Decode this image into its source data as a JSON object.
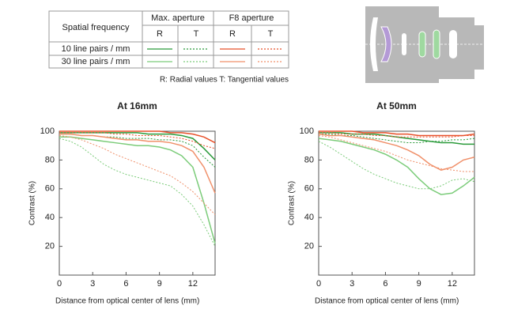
{
  "legend_table": {
    "corner": "Spatial frequency",
    "groups": [
      "Max. aperture",
      "F8 aperture"
    ],
    "columns": [
      "R",
      "T",
      "R",
      "T"
    ],
    "rows": [
      "10 line pairs / mm",
      "30 line pairs / mm"
    ],
    "note": "R: Radial values  T: Tangential values"
  },
  "chart_data": [
    {
      "type": "line",
      "title": "At 16mm",
      "xlabel": "Distance from optical center of lens (mm)",
      "ylabel": "Contrast (%)",
      "xlim": [
        0,
        14
      ],
      "ylim": [
        0,
        100
      ],
      "xticks": [
        0,
        3,
        6,
        9,
        12
      ],
      "yticks": [
        20,
        40,
        60,
        80,
        100
      ],
      "x": [
        0,
        1,
        2,
        3,
        4,
        5,
        6,
        7,
        8,
        9,
        10,
        11,
        12,
        13,
        14
      ],
      "series": [
        {
          "color": "#2a9a3a",
          "dashed": false,
          "values": [
            99,
            99,
            99,
            99,
            99,
            99,
            99,
            99,
            98,
            98,
            98,
            97,
            95,
            88,
            80
          ]
        },
        {
          "color": "#2a9a3a",
          "dashed": true,
          "values": [
            98,
            98,
            97,
            97,
            96,
            96,
            95,
            95,
            95,
            94,
            94,
            93,
            90,
            82,
            75
          ]
        },
        {
          "color": "#e8502a",
          "dashed": false,
          "values": [
            100,
            100,
            100,
            100,
            100,
            100,
            100,
            100,
            100,
            100,
            99,
            99,
            98,
            96,
            92
          ]
        },
        {
          "color": "#e8502a",
          "dashed": true,
          "values": [
            99,
            99,
            99,
            99,
            99,
            98,
            98,
            97,
            97,
            97,
            96,
            95,
            93,
            90,
            88
          ]
        },
        {
          "color": "#7ccc7a",
          "dashed": false,
          "values": [
            96,
            96,
            95,
            94,
            93,
            92,
            91,
            90,
            90,
            89,
            87,
            83,
            75,
            50,
            22
          ]
        },
        {
          "color": "#7ccc7a",
          "dashed": true,
          "values": [
            95,
            93,
            89,
            83,
            77,
            73,
            70,
            68,
            66,
            64,
            62,
            56,
            48,
            35,
            20
          ]
        },
        {
          "color": "#f0906a",
          "dashed": false,
          "values": [
            98,
            98,
            97,
            97,
            96,
            95,
            94,
            94,
            93,
            93,
            92,
            90,
            86,
            75,
            57
          ]
        },
        {
          "color": "#f0906a",
          "dashed": true,
          "values": [
            97,
            96,
            94,
            91,
            88,
            84,
            81,
            78,
            75,
            72,
            69,
            64,
            58,
            50,
            42
          ]
        }
      ]
    },
    {
      "type": "line",
      "title": "At 50mm",
      "xlabel": "Distance from optical center of lens (mm)",
      "ylabel": "Contrast (%)",
      "xlim": [
        0,
        14
      ],
      "ylim": [
        0,
        100
      ],
      "xticks": [
        0,
        3,
        6,
        9,
        12
      ],
      "yticks": [
        20,
        40,
        60,
        80,
        100
      ],
      "x": [
        0,
        1,
        2,
        3,
        4,
        5,
        6,
        7,
        8,
        9,
        10,
        11,
        12,
        13,
        14
      ],
      "series": [
        {
          "color": "#2a9a3a",
          "dashed": false,
          "values": [
            99,
            99,
            99,
            98,
            98,
            98,
            97,
            96,
            95,
            94,
            93,
            92,
            92,
            91,
            91
          ]
        },
        {
          "color": "#2a9a3a",
          "dashed": true,
          "values": [
            98,
            98,
            97,
            97,
            96,
            95,
            94,
            93,
            92,
            92,
            93,
            93,
            94,
            94,
            95
          ]
        },
        {
          "color": "#e8502a",
          "dashed": false,
          "values": [
            100,
            100,
            100,
            100,
            99,
            99,
            99,
            98,
            98,
            97,
            97,
            97,
            97,
            97,
            98
          ]
        },
        {
          "color": "#e8502a",
          "dashed": true,
          "values": [
            99,
            99,
            98,
            98,
            98,
            97,
            97,
            96,
            96,
            96,
            96,
            96,
            96,
            97,
            97
          ]
        },
        {
          "color": "#7ccc7a",
          "dashed": false,
          "values": [
            95,
            94,
            93,
            91,
            89,
            87,
            84,
            80,
            75,
            67,
            60,
            56,
            57,
            62,
            68
          ]
        },
        {
          "color": "#7ccc7a",
          "dashed": true,
          "values": [
            93,
            89,
            84,
            79,
            74,
            70,
            67,
            64,
            62,
            60,
            60,
            62,
            66,
            67,
            65
          ]
        },
        {
          "color": "#f0906a",
          "dashed": false,
          "values": [
            98,
            97,
            97,
            96,
            95,
            94,
            92,
            90,
            87,
            83,
            77,
            73,
            75,
            80,
            82
          ]
        },
        {
          "color": "#f0906a",
          "dashed": true,
          "values": [
            97,
            96,
            94,
            92,
            90,
            88,
            86,
            83,
            80,
            78,
            76,
            74,
            73,
            72,
            72
          ]
        }
      ]
    }
  ]
}
